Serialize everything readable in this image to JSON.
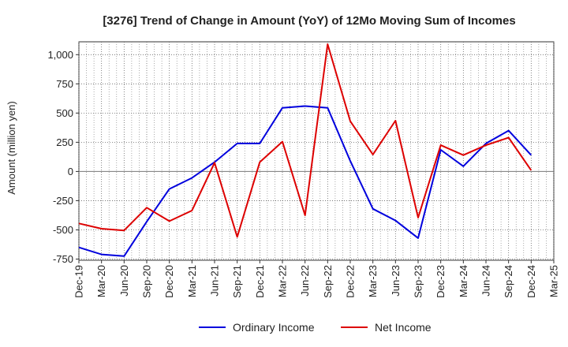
{
  "chart_data": {
    "type": "line",
    "title": "[3276]  Trend of Change in Amount (YoY) of 12Mo Moving Sum of Incomes",
    "xlabel": "",
    "ylabel": "Amount (million yen)",
    "categories": [
      "Dec-19",
      "Mar-20",
      "Jun-20",
      "Sep-20",
      "Dec-20",
      "Mar-21",
      "Jun-21",
      "Sep-21",
      "Dec-21",
      "Mar-22",
      "Jun-22",
      "Sep-22",
      "Dec-22",
      "Mar-23",
      "Jun-23",
      "Sep-23",
      "Dec-23",
      "Mar-24",
      "Jun-24",
      "Sep-24",
      "Dec-24",
      "Mar-25"
    ],
    "yticks": [
      -750,
      -500,
      -250,
      0,
      250,
      500,
      750,
      1000
    ],
    "ytick_labels": [
      "-750",
      "-500",
      "-250",
      "0",
      "250",
      "500",
      "750",
      "1,000"
    ],
    "ylim": [
      -760,
      1110
    ],
    "grid": true,
    "legend_position": "bottom",
    "series": [
      {
        "name": "Ordinary Income",
        "color": "#0000dd",
        "values": [
          -650,
          -710,
          -725,
          -430,
          -150,
          -55,
          80,
          240,
          240,
          545,
          560,
          545,
          90,
          -320,
          -420,
          -570,
          185,
          45,
          240,
          350,
          140,
          null
        ]
      },
      {
        "name": "Net Income",
        "color": "#dd0000",
        "values": [
          -445,
          -490,
          -505,
          -310,
          -425,
          -335,
          75,
          -560,
          80,
          255,
          -375,
          1090,
          430,
          145,
          435,
          -395,
          225,
          140,
          225,
          290,
          10,
          null
        ]
      }
    ]
  }
}
